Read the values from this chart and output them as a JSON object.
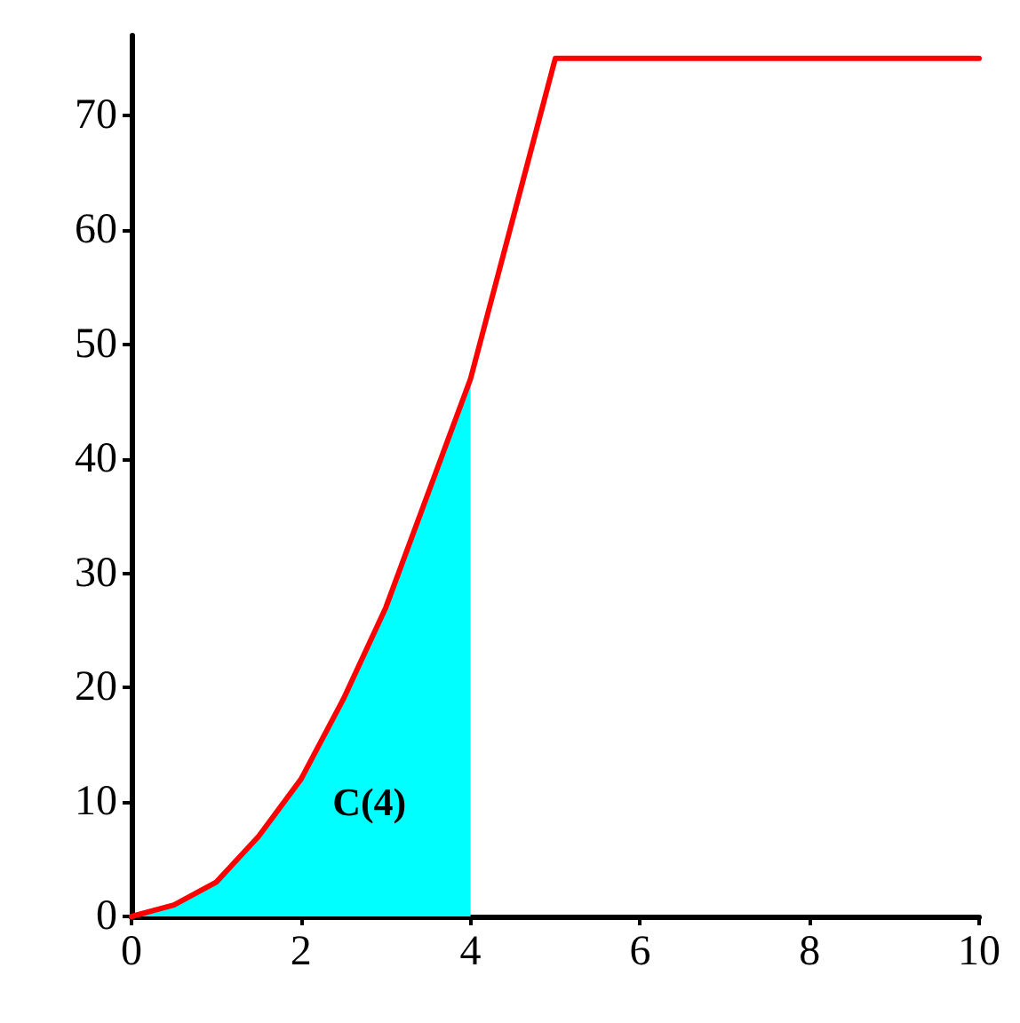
{
  "chart_data": {
    "type": "line",
    "xlim": [
      0,
      10
    ],
    "xticks": [
      0,
      2,
      4,
      6,
      8,
      10
    ],
    "ylim": [
      0,
      77
    ],
    "yticks": [
      0,
      10,
      20,
      30,
      40,
      50,
      60,
      70
    ],
    "grid": false,
    "marker": "none",
    "line_style": "solid",
    "series": [
      {
        "type": "area",
        "color": "#00ffff",
        "x": [
          0,
          0.5,
          1,
          1.5,
          2,
          2.5,
          3,
          3.5,
          4
        ],
        "values": [
          0,
          1,
          3,
          7,
          12,
          19,
          27,
          37,
          47
        ]
      },
      {
        "color": "#ff0000",
        "x": [
          0,
          0.5,
          1,
          1.5,
          2,
          2.5,
          3,
          3.5,
          4,
          4.5,
          5,
          10
        ],
        "values": [
          0,
          1,
          3,
          7,
          12,
          19,
          27,
          37,
          47,
          61,
          75,
          75
        ]
      }
    ],
    "annotations": [
      "C(4)"
    ]
  }
}
